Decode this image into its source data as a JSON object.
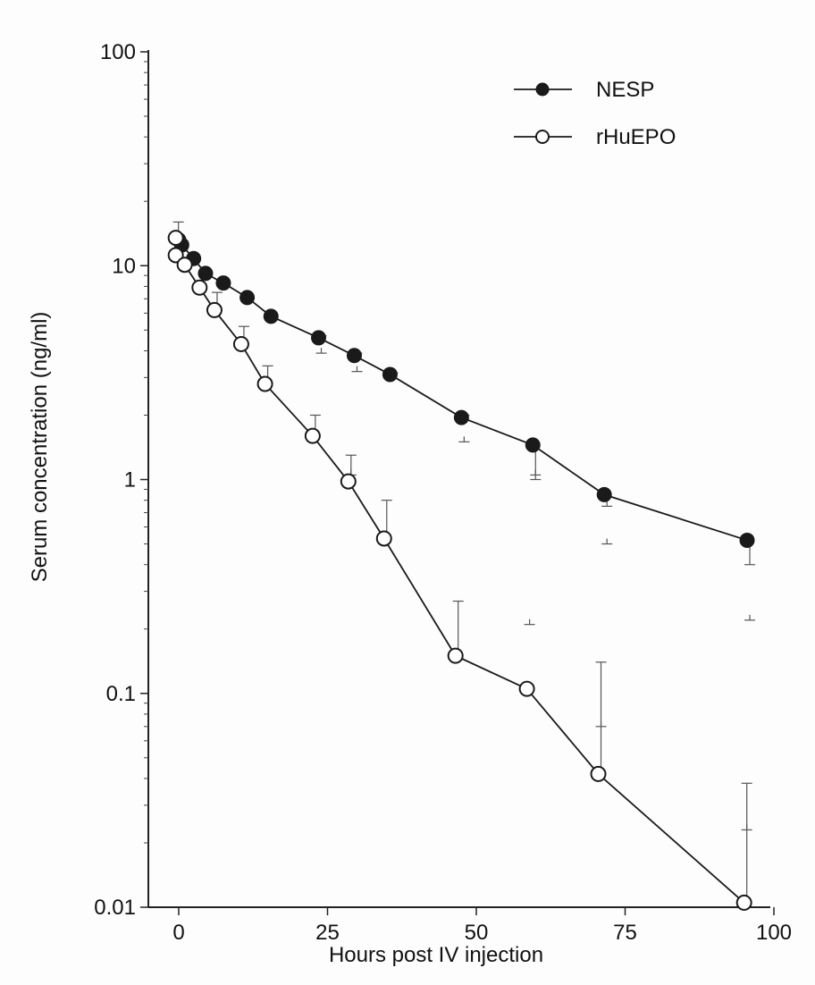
{
  "chart_data": {
    "type": "line",
    "xlabel": "Hours post IV injection",
    "ylabel": "Serum concentration (ng/ml)",
    "xlim": [
      -5,
      100
    ],
    "ylim": [
      0.01,
      100
    ],
    "yscale": "log",
    "xticks": [
      0,
      25,
      50,
      75,
      100
    ],
    "xtick_labels": [
      "0",
      "25",
      "50",
      "75",
      "100"
    ],
    "yticks": [
      0.01,
      0.1,
      1,
      10,
      100
    ],
    "ytick_labels": [
      "0.01",
      "0.1",
      "1",
      "10",
      "100"
    ],
    "legend_position": "top-right",
    "grid": false,
    "series": [
      {
        "name": "NESP",
        "marker": "filled-circle",
        "color": "#1a1a1a",
        "x": [
          0,
          0.5,
          2.5,
          4.5,
          7.5,
          11.5,
          15.5,
          23.5,
          29.5,
          35.5,
          47.5,
          59.5,
          71.5,
          95.5
        ],
        "y": [
          13.2,
          12.5,
          10.8,
          9.2,
          8.3,
          7.1,
          5.8,
          4.6,
          3.8,
          3.1,
          1.95,
          1.45,
          0.85,
          0.52
        ],
        "error_upper": [
          null,
          null,
          null,
          null,
          null,
          null,
          null,
          4.7,
          3.9,
          3.15,
          2.0,
          1.0,
          0.75,
          0.4
        ],
        "error_lower": [
          null,
          null,
          null,
          null,
          null,
          null,
          null,
          3.9,
          3.2,
          null,
          1.5,
          1.05,
          0.5,
          0.22
        ]
      },
      {
        "name": "rHuEPO",
        "marker": "open-circle",
        "color": "#1a1a1a",
        "x": [
          -0.5,
          -0.5,
          1,
          3.5,
          6,
          10.5,
          14.5,
          22.5,
          28.5,
          34.5,
          46.5,
          58.5,
          70.5,
          95
        ],
        "y": [
          13.5,
          11.2,
          10.1,
          7.9,
          6.2,
          4.3,
          2.8,
          1.6,
          0.98,
          0.53,
          0.15,
          0.105,
          0.042,
          0.0105
        ],
        "error_upper": [
          16.0,
          null,
          null,
          null,
          7.5,
          5.2,
          3.4,
          2.0,
          1.3,
          0.8,
          0.27,
          null,
          0.14,
          0.038
        ],
        "error_lower": [
          null,
          null,
          null,
          null,
          null,
          null,
          null,
          null,
          1.05,
          null,
          null,
          0.21,
          0.07,
          0.023
        ]
      }
    ]
  }
}
